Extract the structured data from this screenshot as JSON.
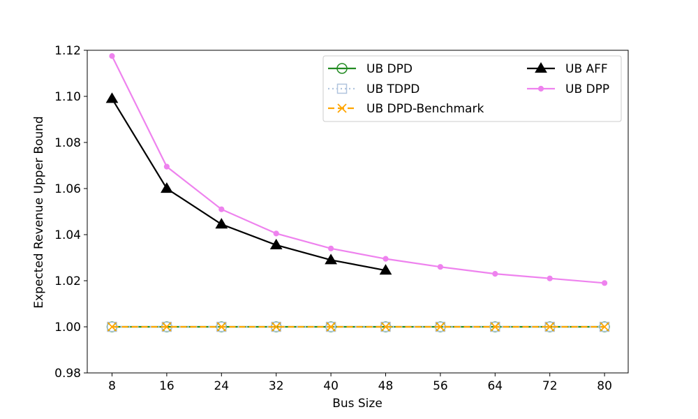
{
  "chart_data": {
    "type": "line",
    "title": "",
    "xlabel": "Bus Size",
    "ylabel": "Expected Revenue Upper Bound",
    "x": [
      8,
      16,
      24,
      32,
      40,
      48,
      56,
      64,
      72,
      80
    ],
    "xticks": [
      "8",
      "16",
      "24",
      "32",
      "40",
      "48",
      "56",
      "64",
      "72",
      "80"
    ],
    "ylim": [
      0.98,
      1.12
    ],
    "yticks": [
      "0.98",
      "1.00",
      "1.02",
      "1.04",
      "1.06",
      "1.08",
      "1.10",
      "1.12"
    ],
    "grid": false,
    "legend_position": "top-right",
    "series": [
      {
        "name": "UB DPD",
        "color": "#228B22",
        "marker": "circle-open",
        "line": "solid",
        "values": [
          1.0,
          1.0,
          1.0,
          1.0,
          1.0,
          1.0,
          1.0,
          1.0,
          1.0,
          1.0
        ]
      },
      {
        "name": "UB TDPD",
        "color": "#B0C4DE",
        "marker": "square-open",
        "line": "dotted",
        "values": [
          1.0,
          1.0,
          1.0,
          1.0,
          1.0,
          1.0,
          1.0,
          1.0,
          1.0,
          1.0
        ]
      },
      {
        "name": "UB DPD-Benchmark",
        "color": "#FFA500",
        "marker": "x",
        "line": "dashed",
        "values": [
          1.0,
          1.0,
          1.0,
          1.0,
          1.0,
          1.0,
          1.0,
          1.0,
          1.0,
          1.0
        ]
      },
      {
        "name": "UB AFF",
        "color": "#000000",
        "marker": "triangle",
        "line": "solid",
        "values": [
          1.099,
          1.06,
          1.0445,
          1.0355,
          1.029,
          1.0245,
          null,
          null,
          null,
          null
        ]
      },
      {
        "name": "UB DPP",
        "color": "#EE82EE",
        "marker": "dot",
        "line": "solid",
        "values": [
          1.1175,
          1.0695,
          1.051,
          1.0405,
          1.034,
          1.0295,
          1.026,
          1.023,
          1.021,
          1.019
        ]
      }
    ]
  }
}
